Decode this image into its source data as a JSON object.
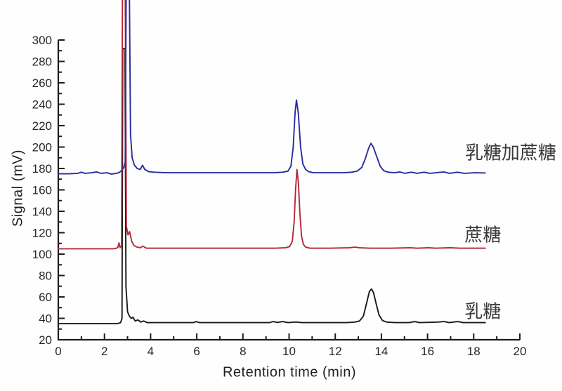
{
  "figure": {
    "background_color": "#fefefe",
    "axis_color": "#1c1c1c",
    "tick_label_color": "#262626"
  },
  "chart_data": {
    "type": "line",
    "title": "",
    "xlabel": "Retention time (min)",
    "ylabel": "Signal (mV)",
    "xlim": [
      0,
      20
    ],
    "ylim": [
      20,
      300
    ],
    "x_major_tick_interval": 2,
    "x_minor_tick_interval": 1,
    "y_major_tick_interval": 20,
    "y_minor_tick_interval": 10,
    "grid": false,
    "legend_position": "right-inline-labels",
    "series": [
      {
        "name": "lactose",
        "label": "乳糖",
        "color": "#1a1a1a",
        "baseline_mV": 35,
        "label_pos": {
          "t": 18.4,
          "mV": 47.5
        },
        "peaks": [
          {
            "retention_time_min": 2.85,
            "apex_mV": 292,
            "note": "solvent front"
          },
          {
            "retention_time_min": 13.55,
            "apex_mV": 67,
            "note": "lactose"
          }
        ],
        "points": [
          [
            0,
            35
          ],
          [
            0.8,
            35
          ],
          [
            1.6,
            35
          ],
          [
            2.3,
            35
          ],
          [
            2.55,
            35
          ],
          [
            2.7,
            36
          ],
          [
            2.76,
            40
          ],
          [
            2.79,
            292
          ],
          [
            2.89,
            292
          ],
          [
            2.93,
            70
          ],
          [
            3.0,
            46
          ],
          [
            3.08,
            42
          ],
          [
            3.16,
            40
          ],
          [
            3.24,
            41
          ],
          [
            3.33,
            37.5
          ],
          [
            3.45,
            38.5
          ],
          [
            3.58,
            36.5
          ],
          [
            3.7,
            37.5
          ],
          [
            3.85,
            36
          ],
          [
            4.3,
            36
          ],
          [
            5.2,
            36
          ],
          [
            5.85,
            36
          ],
          [
            5.97,
            37
          ],
          [
            6.12,
            36
          ],
          [
            7.1,
            36
          ],
          [
            8.2,
            36
          ],
          [
            9.15,
            36
          ],
          [
            9.3,
            37
          ],
          [
            9.5,
            36.2
          ],
          [
            9.72,
            37
          ],
          [
            9.95,
            36
          ],
          [
            10.3,
            36.6
          ],
          [
            10.55,
            36
          ],
          [
            11.4,
            36
          ],
          [
            12.5,
            36
          ],
          [
            12.85,
            36.5
          ],
          [
            13.05,
            37.5
          ],
          [
            13.22,
            42
          ],
          [
            13.38,
            56
          ],
          [
            13.48,
            65
          ],
          [
            13.57,
            67.5
          ],
          [
            13.66,
            64
          ],
          [
            13.78,
            53
          ],
          [
            13.9,
            43
          ],
          [
            14.05,
            38
          ],
          [
            14.22,
            36.5
          ],
          [
            14.6,
            36
          ],
          [
            15.2,
            36
          ],
          [
            15.45,
            37
          ],
          [
            15.65,
            36
          ],
          [
            16.45,
            36.5
          ],
          [
            16.72,
            37
          ],
          [
            16.95,
            36
          ],
          [
            17.3,
            37
          ],
          [
            17.55,
            36
          ],
          [
            18.1,
            36
          ],
          [
            18.5,
            36
          ]
        ]
      },
      {
        "name": "sucrose",
        "label": "蔗糖",
        "color": "#b2293a",
        "baseline_mV": 105,
        "label_pos": {
          "t": 18.4,
          "mV": 119
        },
        "peaks": [
          {
            "retention_time_min": 2.85,
            "apex_mV": 335,
            "note": "solvent front, clipped at top of figure"
          },
          {
            "retention_time_min": 10.35,
            "apex_mV": 179,
            "note": "sucrose"
          }
        ],
        "points": [
          [
            0,
            105
          ],
          [
            0.9,
            105
          ],
          [
            1.8,
            105
          ],
          [
            2.4,
            105
          ],
          [
            2.52,
            105.5
          ],
          [
            2.58,
            106.5
          ],
          [
            2.63,
            110.5
          ],
          [
            2.68,
            106
          ],
          [
            2.74,
            108
          ],
          [
            2.78,
            340
          ],
          [
            2.9,
            340
          ],
          [
            2.95,
            126
          ],
          [
            3.02,
            118
          ],
          [
            3.09,
            121
          ],
          [
            3.18,
            112
          ],
          [
            3.28,
            108
          ],
          [
            3.42,
            106.5
          ],
          [
            3.56,
            106
          ],
          [
            3.66,
            107.5
          ],
          [
            3.82,
            105.5
          ],
          [
            4.5,
            105.5
          ],
          [
            5.6,
            105.5
          ],
          [
            6.8,
            105.5
          ],
          [
            8.2,
            105.5
          ],
          [
            9.4,
            105.5
          ],
          [
            9.85,
            106
          ],
          [
            10.02,
            107
          ],
          [
            10.14,
            112
          ],
          [
            10.22,
            130
          ],
          [
            10.28,
            160
          ],
          [
            10.34,
            179
          ],
          [
            10.4,
            168
          ],
          [
            10.47,
            138
          ],
          [
            10.54,
            117
          ],
          [
            10.62,
            109
          ],
          [
            10.72,
            106.5
          ],
          [
            10.9,
            105.5
          ],
          [
            11.8,
            105.5
          ],
          [
            12.6,
            106
          ],
          [
            12.85,
            106.5
          ],
          [
            13.05,
            106
          ],
          [
            13.5,
            105.5
          ],
          [
            14.4,
            105.5
          ],
          [
            15.25,
            106
          ],
          [
            15.55,
            105.5
          ],
          [
            16.05,
            106
          ],
          [
            16.35,
            105.5
          ],
          [
            17.0,
            106
          ],
          [
            17.4,
            105.5
          ],
          [
            18.0,
            105.5
          ],
          [
            18.5,
            105.5
          ]
        ]
      },
      {
        "name": "lactose-plus-sucrose",
        "label": "乳糖加蔗糖",
        "color": "#2b2b9e",
        "baseline_mV": 175,
        "label_pos": {
          "t": 19.6,
          "mV": 196
        },
        "peaks": [
          {
            "retention_time_min": 3.0,
            "apex_mV": 335,
            "note": "solvent front, clipped at top of figure"
          },
          {
            "retention_time_min": 10.32,
            "apex_mV": 244,
            "note": "sucrose"
          },
          {
            "retention_time_min": 13.55,
            "apex_mV": 203,
            "note": "lactose"
          }
        ],
        "points": [
          [
            0,
            175
          ],
          [
            0.45,
            175
          ],
          [
            0.85,
            175.5
          ],
          [
            1.0,
            176.5
          ],
          [
            1.15,
            175.5
          ],
          [
            1.45,
            176
          ],
          [
            1.65,
            176.8
          ],
          [
            1.85,
            175.5
          ],
          [
            2.1,
            176
          ],
          [
            2.3,
            174.8
          ],
          [
            2.45,
            175.2
          ],
          [
            2.62,
            176
          ],
          [
            2.74,
            178
          ],
          [
            2.84,
            181
          ],
          [
            2.9,
            186
          ],
          [
            2.94,
            345
          ],
          [
            3.08,
            345
          ],
          [
            3.13,
            212
          ],
          [
            3.2,
            190
          ],
          [
            3.3,
            183
          ],
          [
            3.42,
            180
          ],
          [
            3.55,
            179
          ],
          [
            3.65,
            183
          ],
          [
            3.75,
            179
          ],
          [
            3.92,
            177
          ],
          [
            4.15,
            176.5
          ],
          [
            4.7,
            176
          ],
          [
            5.7,
            176
          ],
          [
            6.9,
            176
          ],
          [
            8.3,
            176
          ],
          [
            9.35,
            176
          ],
          [
            9.72,
            176.5
          ],
          [
            9.95,
            177.5
          ],
          [
            10.08,
            182
          ],
          [
            10.18,
            200
          ],
          [
            10.26,
            232
          ],
          [
            10.32,
            244
          ],
          [
            10.4,
            232
          ],
          [
            10.5,
            200
          ],
          [
            10.6,
            184
          ],
          [
            10.72,
            179
          ],
          [
            10.85,
            177
          ],
          [
            11.05,
            176
          ],
          [
            11.7,
            176
          ],
          [
            12.35,
            176
          ],
          [
            12.7,
            176.5
          ],
          [
            12.95,
            177.5
          ],
          [
            13.15,
            181
          ],
          [
            13.3,
            189
          ],
          [
            13.45,
            199
          ],
          [
            13.55,
            203.5
          ],
          [
            13.65,
            200
          ],
          [
            13.8,
            191
          ],
          [
            13.95,
            182
          ],
          [
            14.1,
            178
          ],
          [
            14.3,
            176.5
          ],
          [
            14.55,
            176
          ],
          [
            14.8,
            176.8
          ],
          [
            15.0,
            175.5
          ],
          [
            15.3,
            176.5
          ],
          [
            15.55,
            175.5
          ],
          [
            15.85,
            176.5
          ],
          [
            16.1,
            175.5
          ],
          [
            16.45,
            176.2
          ],
          [
            16.7,
            176.8
          ],
          [
            16.95,
            175.5
          ],
          [
            17.3,
            176.5
          ],
          [
            17.6,
            175.5
          ],
          [
            18.05,
            176
          ],
          [
            18.5,
            175.8
          ]
        ]
      }
    ]
  }
}
